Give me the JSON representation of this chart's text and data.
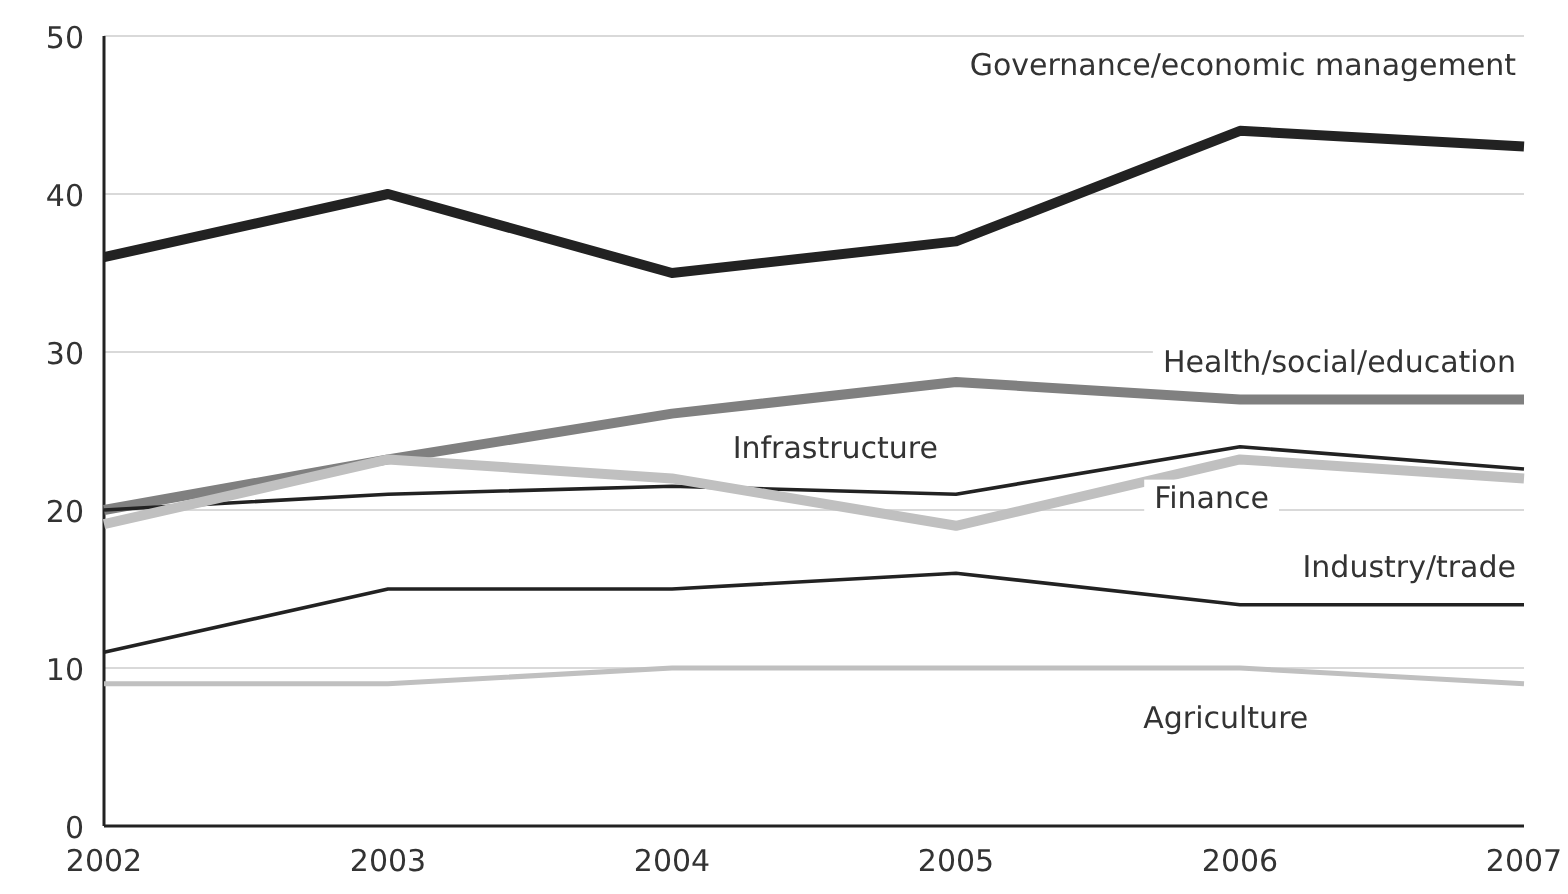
{
  "chart_data": {
    "type": "line",
    "x": [
      2002,
      2003,
      2004,
      2005,
      2006,
      2007
    ],
    "xlim": [
      2002,
      2007
    ],
    "xticks": [
      2002,
      2003,
      2004,
      2005,
      2006,
      2007
    ],
    "ylim": [
      0,
      50
    ],
    "yticks": [
      0,
      10,
      20,
      30,
      40,
      50
    ],
    "grid": "y",
    "marker": "none",
    "line_style": "solid",
    "series": [
      {
        "name": "Governance/economic management",
        "color": "#222222",
        "values": [
          36,
          40,
          35,
          37,
          44,
          43
        ]
      },
      {
        "name": "Health/social/education",
        "color": "#808080",
        "values": [
          20,
          23.2,
          26.1,
          28.1,
          27,
          27
        ]
      },
      {
        "name": "Infrastructure",
        "color": "#222222",
        "values": [
          20,
          21,
          21.5,
          21,
          24,
          22.6
        ]
      },
      {
        "name": "Finance",
        "color": "#c0c0c0",
        "values": [
          19.1,
          23.2,
          22,
          19,
          23.2,
          22
        ]
      },
      {
        "name": "Industry/trade",
        "color": "#222222",
        "values": [
          11,
          15,
          15,
          16,
          14,
          14
        ]
      },
      {
        "name": "Agriculture",
        "color": "#c0c0c0",
        "values": [
          9,
          9,
          10,
          10,
          10,
          9
        ]
      }
    ]
  }
}
